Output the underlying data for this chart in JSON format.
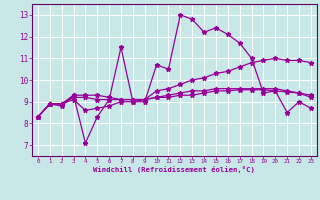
{
  "xlabel": "Windchill (Refroidissement éolien,°C)",
  "background_color": "#c8e8e8",
  "grid_color": "#ffffff",
  "line_color": "#990099",
  "spine_color": "#660066",
  "xlim": [
    -0.5,
    23.5
  ],
  "ylim": [
    6.5,
    13.5
  ],
  "xticks": [
    0,
    1,
    2,
    3,
    4,
    5,
    6,
    7,
    8,
    9,
    10,
    11,
    12,
    13,
    14,
    15,
    16,
    17,
    18,
    19,
    20,
    21,
    22,
    23
  ],
  "yticks": [
    7,
    8,
    9,
    10,
    11,
    12,
    13
  ],
  "series1_y": [
    8.3,
    8.9,
    8.8,
    9.3,
    7.1,
    8.3,
    9.1,
    11.5,
    9.0,
    9.0,
    10.7,
    10.5,
    13.0,
    12.8,
    12.2,
    12.4,
    12.1,
    11.7,
    11.0,
    9.4,
    9.5,
    8.5,
    9.0,
    8.7
  ],
  "series2_y": [
    8.3,
    8.9,
    8.9,
    9.3,
    9.3,
    9.3,
    9.2,
    9.1,
    9.1,
    9.1,
    9.2,
    9.2,
    9.3,
    9.3,
    9.4,
    9.5,
    9.5,
    9.55,
    9.55,
    9.55,
    9.5,
    9.45,
    9.4,
    9.3
  ],
  "series3_y": [
    8.3,
    8.9,
    8.9,
    9.1,
    8.6,
    8.7,
    8.8,
    9.0,
    9.0,
    9.1,
    9.5,
    9.6,
    9.8,
    10.0,
    10.1,
    10.3,
    10.4,
    10.6,
    10.8,
    10.9,
    11.0,
    10.9,
    10.9,
    10.8
  ],
  "series4_y": [
    8.3,
    8.9,
    8.9,
    9.2,
    9.2,
    9.1,
    9.1,
    9.1,
    9.1,
    9.1,
    9.2,
    9.3,
    9.4,
    9.5,
    9.5,
    9.6,
    9.6,
    9.6,
    9.6,
    9.6,
    9.6,
    9.5,
    9.4,
    9.2
  ]
}
